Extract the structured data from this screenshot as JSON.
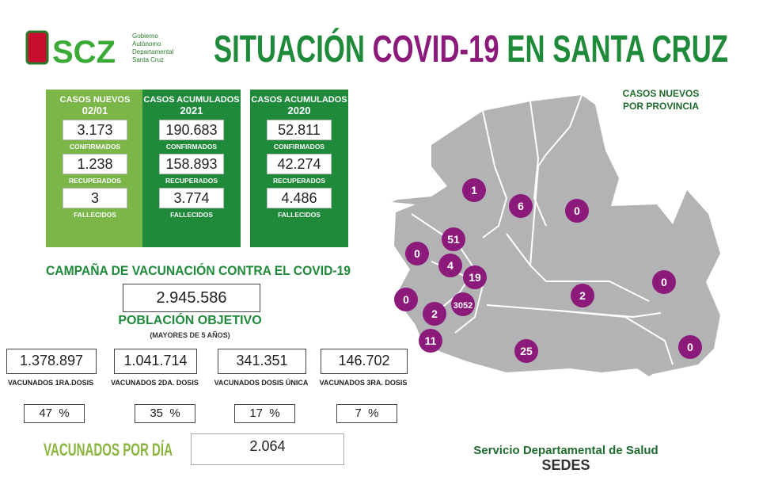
{
  "header": {
    "logo_text": "SCZ",
    "logo_sub": [
      "Gobierno",
      "Autónomo",
      "Departamental",
      "Santa Cruz"
    ],
    "title": [
      "SITUACIÓN ",
      "COVID-19",
      " EN SANTA CRUZ"
    ]
  },
  "cards": [
    {
      "title": [
        "CASOS NUEVOS",
        "02/01"
      ],
      "items": [
        {
          "value": "3.173",
          "label": "CONFIRMADOS"
        },
        {
          "value": "1.238",
          "label": "RECUPERADOS"
        },
        {
          "value": "3",
          "label": "FALLECIDOS"
        }
      ]
    },
    {
      "title": [
        "CASOS ACUMULADOS",
        "2021"
      ],
      "items": [
        {
          "value": "190.683",
          "label": "CONFIRMADOS"
        },
        {
          "value": "158.893",
          "label": "RECUPERADOS"
        },
        {
          "value": "3.774",
          "label": "FALLECIDOS"
        }
      ]
    },
    {
      "title": [
        "CASOS ACUMULADOS",
        "2020"
      ],
      "items": [
        {
          "value": "52.811",
          "label": "CONFIRMADOS"
        },
        {
          "value": "42.274",
          "label": "RECUPERADOS"
        },
        {
          "value": "4.486",
          "label": "FALLECIDOS"
        }
      ]
    }
  ],
  "vaccination": {
    "title": "CAMPAÑA DE VACUNACIÓN CONTRA EL COVID-19",
    "target_value": "2.945.586",
    "target_label": "POBLACIÓN OBJETIVO",
    "target_note": "(MAYORES DE 5 AÑOS)",
    "doses": [
      {
        "value": "1.378.897",
        "label": "VACUNADOS 1RA.DOSIS",
        "percent": "47  %"
      },
      {
        "value": "1.041.714",
        "label": "VACUNADOS 2DA. DOSIS",
        "percent": "35  %"
      },
      {
        "value": "341.351",
        "label": "VACUNADOS DOSIS ÚNICA",
        "percent": "17  %"
      },
      {
        "value": "146.702",
        "label": "VACUNADOS 3RA. DOSIS",
        "percent": "7  %"
      }
    ],
    "per_day_label": "VACUNADOS POR DÍA",
    "per_day_value": "2.064"
  },
  "map": {
    "title": [
      "CASOS NUEVOS",
      "POR PROVINCIA"
    ],
    "provinces": [
      "1",
      "6",
      "0",
      "51",
      "0",
      "4",
      "19",
      "0",
      "2",
      "3052",
      "2",
      "11",
      "25",
      "0",
      "0"
    ]
  },
  "footer": [
    "Servicio Departamental de Salud",
    "SEDES"
  ]
}
